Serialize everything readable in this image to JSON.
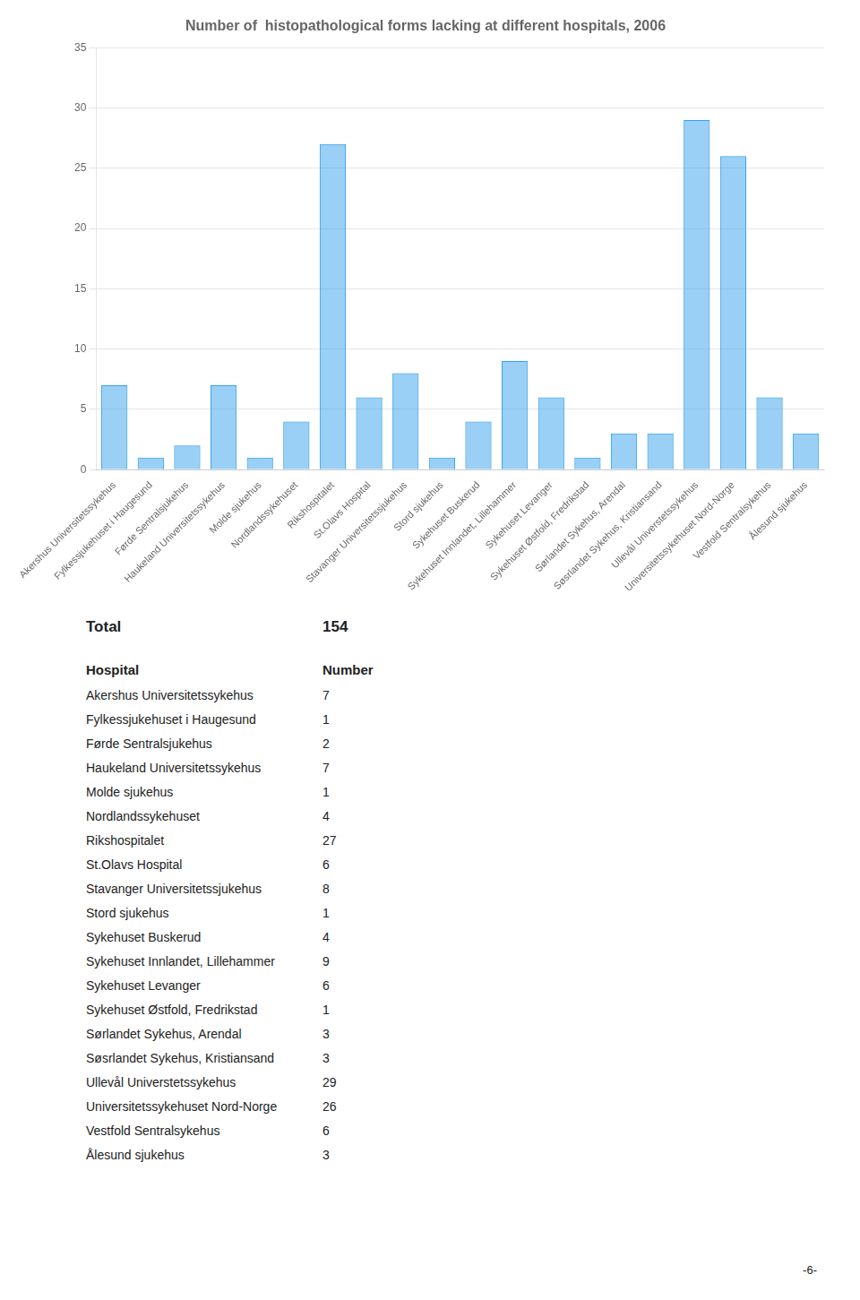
{
  "chart_data": {
    "type": "bar",
    "title": "Number of  histopathological forms lacking at different hospitals, 2006",
    "categories": [
      "Akershus Universitetssykehus",
      "Fylkessjukehuset i Haugesund",
      "Førde Sentralsjukehus",
      "Haukeland Universitetssykehus",
      "Molde sjukehus",
      "Nordlandssykehuset",
      "Rikshospitalet",
      "St.Olavs Hospital",
      "Stavanger Universitetssjukehus",
      "Stord sjukehus",
      "Sykehuset Buskerud",
      "Sykehuset Innlandet, Lillehammer",
      "Sykehuset Levanger",
      "Sykehuset Østfold, Fredrikstad",
      "Sørlandet Sykehus, Arendal",
      "Søsrlandet Sykehus, Kristiansand",
      "Ullevål Universtetssykehus",
      "Universitetssykehuset Nord-Norge",
      "Vestfold Sentralsykehus",
      "Ålesund sjukehus"
    ],
    "values": [
      7,
      1,
      2,
      7,
      1,
      4,
      27,
      6,
      8,
      1,
      4,
      9,
      6,
      1,
      3,
      3,
      29,
      26,
      6,
      3
    ],
    "ylim": [
      0,
      35
    ],
    "yticks": [
      0,
      5,
      10,
      15,
      20,
      25,
      30,
      35
    ],
    "grid": true
  },
  "table": {
    "total_label": "Total",
    "total": 154,
    "columns": [
      "Hospital",
      "Number"
    ]
  },
  "page_number": "-6-"
}
